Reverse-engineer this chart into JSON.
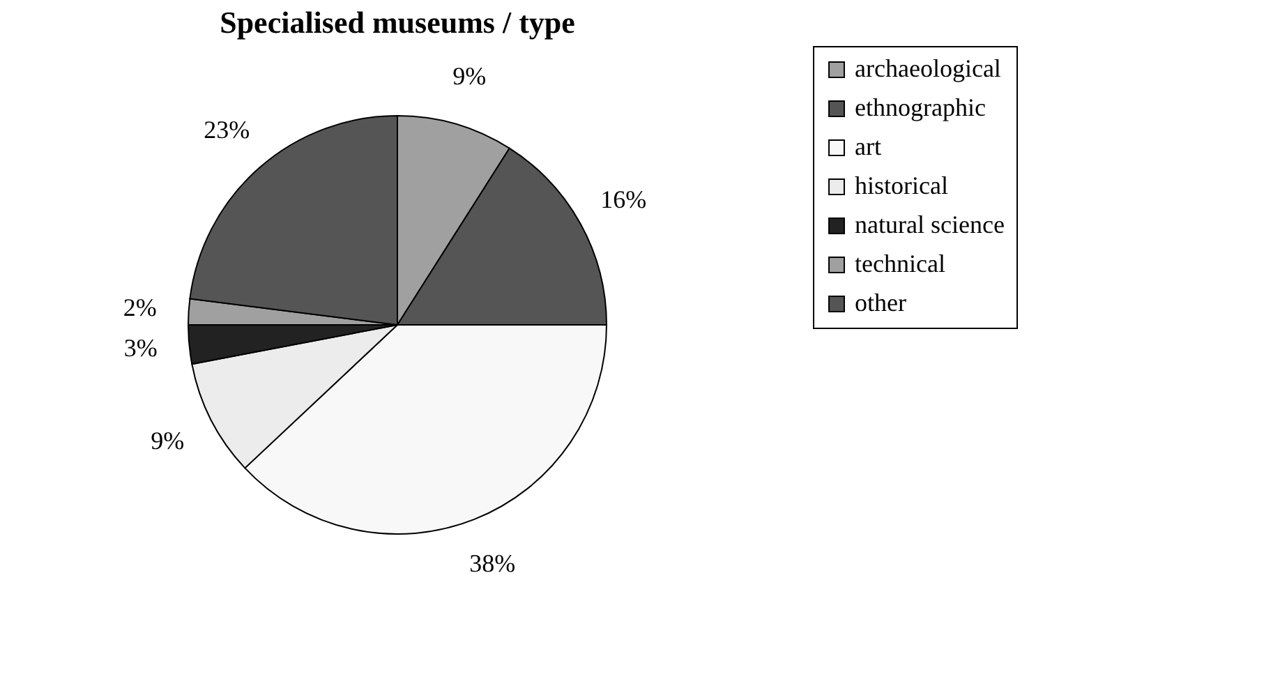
{
  "chart_data": {
    "type": "pie",
    "title": "Specialised museums / type",
    "categories": [
      "archaeological",
      "ethnographic",
      "art",
      "historical",
      "natural science",
      "technical",
      "other"
    ],
    "values": [
      9,
      16,
      38,
      9,
      3,
      2,
      23
    ],
    "colors": [
      "#a0a0a0",
      "#555555",
      "#f8f8f8",
      "#ececec",
      "#222222",
      "#a0a0a0",
      "#555555"
    ],
    "value_labels": [
      "9%",
      "16%",
      "38%",
      "9%",
      "3%",
      "2%",
      "23%"
    ],
    "legend": "right"
  }
}
